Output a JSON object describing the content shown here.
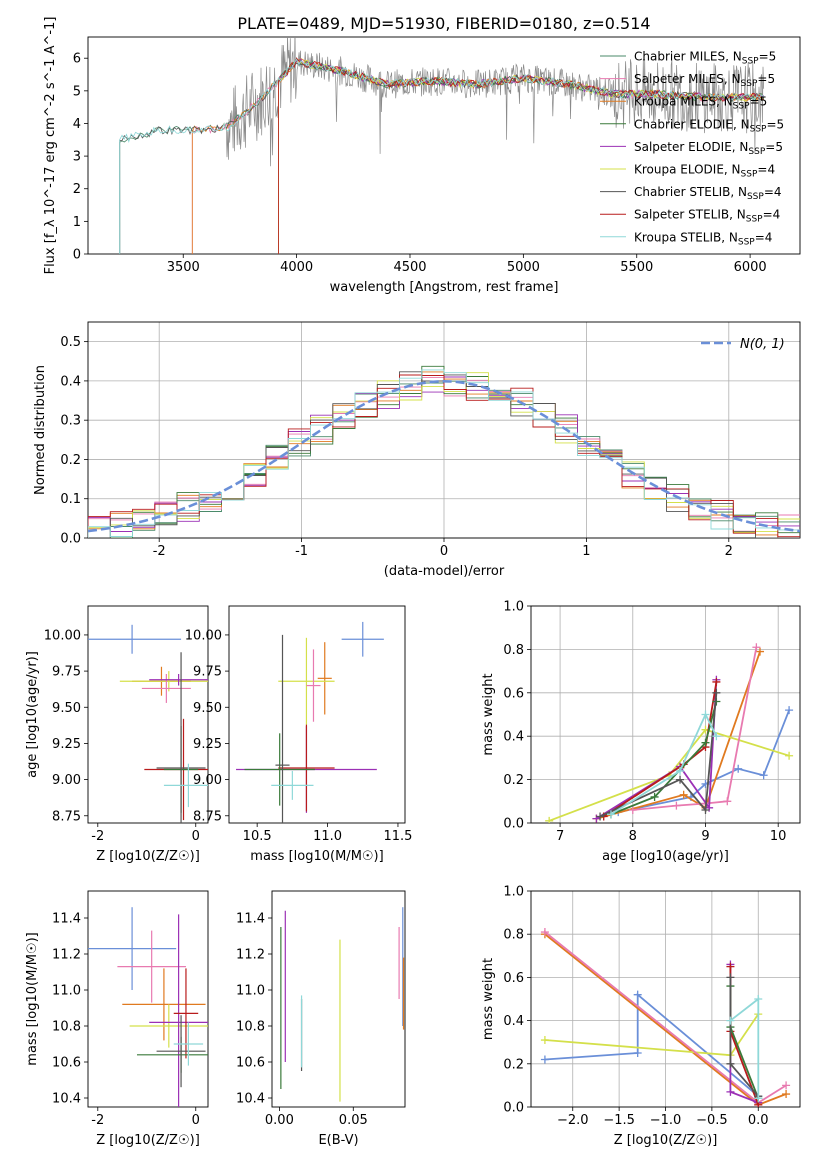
{
  "title": "PLATE=0489, MJD=51930, FIBERID=0180, z=0.514",
  "colors": [
    "#4a8a6a",
    "#e87ab0",
    "#e07a20",
    "#3a7a3a",
    "#9b30b5",
    "#d4e04a",
    "#555555",
    "#b81c1c",
    "#8fd8d8"
  ],
  "chart_data": [
    {
      "id": "spectrum",
      "type": "line",
      "xlabel": "wavelength [Angstrom, rest frame]",
      "ylabel": "Flux [f_λ 10^-17 erg cm^-2 s^-1 A^-1]",
      "xlim": [
        3080,
        6220
      ],
      "ylim": [
        0,
        6.65
      ],
      "xticks": [
        3500,
        4000,
        4500,
        5000,
        5500,
        6000
      ],
      "yticks": [
        0,
        1,
        2,
        3,
        4,
        5,
        6
      ],
      "grid": false,
      "legend_position": "top-right",
      "legend": [
        {
          "main": "Chabrier MILES, N",
          "sub": "SSP",
          "tail": "=5"
        },
        {
          "main": "Salpeter MILES, N",
          "sub": "SSP",
          "tail": "=5"
        },
        {
          "main": "Kroupa MILES, N",
          "sub": "SSP",
          "tail": "=5"
        },
        {
          "main": "Chabrier ELODIE, N",
          "sub": "SSP",
          "tail": "=5"
        },
        {
          "main": "Salpeter ELODIE, N",
          "sub": "SSP",
          "tail": "=5"
        },
        {
          "main": "Kroupa ELODIE, N",
          "sub": "SSP",
          "tail": "=4"
        },
        {
          "main": "Chabrier STELIB, N",
          "sub": "SSP",
          "tail": "=4"
        },
        {
          "main": "Salpeter STELIB, N",
          "sub": "SSP",
          "tail": "=4"
        },
        {
          "main": "Kroupa STELIB, N",
          "sub": "SSP",
          "tail": "=4"
        }
      ],
      "model_starts": [
        3220,
        3540,
        3540,
        3920,
        3920,
        3920,
        3220,
        3920,
        3220
      ],
      "model_ends": [
        6060,
        6060,
        6060,
        6060,
        6060,
        6060,
        6060,
        6060,
        6060
      ],
      "continuum": [
        [
          3220,
          3.5
        ],
        [
          3400,
          3.8
        ],
        [
          3600,
          3.8
        ],
        [
          3700,
          3.9
        ],
        [
          3850,
          4.8
        ],
        [
          4000,
          5.9
        ],
        [
          4200,
          5.6
        ],
        [
          4400,
          5.2
        ],
        [
          4600,
          5.3
        ],
        [
          4800,
          5.2
        ],
        [
          5000,
          5.4
        ],
        [
          5200,
          5.2
        ],
        [
          5400,
          4.9
        ],
        [
          5600,
          4.9
        ],
        [
          5800,
          4.8
        ],
        [
          6060,
          4.8
        ]
      ],
      "data_range": [
        3690,
        6060
      ]
    },
    {
      "id": "residuals",
      "type": "histogram",
      "xlabel": "(data-model)/error",
      "ylabel": "Normed distribution",
      "xlim": [
        -2.5,
        2.5
      ],
      "ylim": [
        0,
        0.55
      ],
      "xticks": [
        -2,
        -1,
        0,
        1,
        2
      ],
      "yticks": [
        0.0,
        0.1,
        0.2,
        0.3,
        0.4,
        0.5
      ],
      "grid": true,
      "legend_position": "top-right",
      "curve_label": "N(0, 1)",
      "curve_color": "#6a8fd8",
      "bins": 32
    },
    {
      "id": "age_vs_Z",
      "type": "errorbar",
      "xlabel": "Z [log10(Z/Z☉)]",
      "ylabel": "age  [log10(age/yr)]",
      "xlim": [
        -2.2,
        0.25
      ],
      "ylim": [
        8.7,
        10.2
      ],
      "xticks": [
        -2,
        0
      ],
      "yticks": [
        8.75,
        9.0,
        9.25,
        9.5,
        9.75,
        10.0
      ],
      "points": [
        {
          "x": -1.3,
          "xerr": 1.0,
          "y": 9.97,
          "yerr": 0.1
        },
        {
          "x": -0.7,
          "xerr": 0.6,
          "y": 9.68,
          "yerr": 0.1
        },
        {
          "x": -0.55,
          "xerr": 1.0,
          "y": 9.68,
          "yerr": 0.07
        },
        {
          "x": -0.6,
          "xerr": 0.5,
          "y": 9.63,
          "yerr": 0.1
        },
        {
          "x": -0.35,
          "xerr": 0.6,
          "y": 9.69,
          "yerr": 0.04
        },
        {
          "x": -0.25,
          "xerr": 0.8,
          "y": 9.07,
          "yerr": 0.35
        },
        {
          "x": -0.3,
          "xerr": 0.35,
          "y": 9.07,
          "yerr": 0.3
        },
        {
          "x": -0.3,
          "xerr": 0.5,
          "y": 9.08,
          "yerr": 0.8
        },
        {
          "x": -0.15,
          "xerr": 0.5,
          "y": 8.96,
          "yerr": 0.15
        }
      ],
      "point_colors": [
        "#6a8fd8",
        "#e07a20",
        "#d4e04a",
        "#e87ab0",
        "#9b30b5",
        "#b81c1c",
        "#3a7a3a",
        "#555555",
        "#8fd8d8"
      ]
    },
    {
      "id": "age_vs_mass",
      "type": "errorbar",
      "xlabel": "mass [log10(M/M☉)]",
      "xlim": [
        10.3,
        11.55
      ],
      "ylim": [
        8.7,
        10.2
      ],
      "xticks": [
        10.5,
        11.0,
        11.5
      ],
      "yticks": [
        8.75,
        9.0,
        9.25,
        9.5,
        9.75,
        10.0
      ],
      "points": [
        {
          "x": 11.25,
          "xerr": 0.15,
          "y": 9.97,
          "yerr": 0.12
        },
        {
          "x": 10.98,
          "xerr": 0.05,
          "y": 9.7,
          "yerr": 0.25
        },
        {
          "x": 10.85,
          "xerr": 0.2,
          "y": 9.68,
          "yerr": 0.3
        },
        {
          "x": 10.9,
          "xerr": 0.05,
          "y": 9.65,
          "yerr": 0.25
        },
        {
          "x": 10.85,
          "xerr": 0.5,
          "y": 9.07,
          "yerr": 0.3
        },
        {
          "x": 10.85,
          "xerr": 0.2,
          "y": 9.08,
          "yerr": 0.3
        },
        {
          "x": 10.66,
          "xerr": 0.25,
          "y": 9.07,
          "yerr": 0.25
        },
        {
          "x": 10.68,
          "xerr": 0.05,
          "y": 9.1,
          "yerr": 0.9
        },
        {
          "x": 10.75,
          "xerr": 0.15,
          "y": 8.96,
          "yerr": 0.1
        }
      ],
      "point_colors": [
        "#6a8fd8",
        "#e07a20",
        "#d4e04a",
        "#e87ab0",
        "#9b30b5",
        "#b81c1c",
        "#3a7a3a",
        "#555555",
        "#8fd8d8"
      ]
    },
    {
      "id": "weight_vs_age",
      "type": "line",
      "xlabel": "age  [log10(age/yr)]",
      "ylabel": "mass weight",
      "xlim": [
        6.6,
        10.3
      ],
      "ylim": [
        0,
        1.0
      ],
      "xticks": [
        7,
        8,
        9,
        10
      ],
      "yticks": [
        0.0,
        0.2,
        0.4,
        0.6,
        0.8,
        1.0
      ],
      "grid": true,
      "series": [
        {
          "x": [
            7.8,
            8.8,
            9.0,
            9.45,
            9.8,
            10.15
          ],
          "y": [
            0.05,
            0.12,
            0.18,
            0.25,
            0.22,
            0.52
          ]
        },
        {
          "x": [
            7.5,
            8.7,
            9.0,
            9.75
          ],
          "y": [
            0.02,
            0.13,
            0.07,
            0.79
          ]
        },
        {
          "x": [
            6.85,
            8.5,
            9.0,
            10.15
          ],
          "y": [
            0.01,
            0.22,
            0.43,
            0.31
          ]
        },
        {
          "x": [
            8.0,
            8.6,
            9.0,
            9.3,
            9.7
          ],
          "y": [
            0.06,
            0.08,
            0.09,
            0.1,
            0.81
          ]
        },
        {
          "x": [
            7.5,
            8.65,
            9.05,
            9.15
          ],
          "y": [
            0.02,
            0.26,
            0.07,
            0.66
          ]
        },
        {
          "x": [
            7.6,
            8.7,
            9.0,
            9.15
          ],
          "y": [
            0.03,
            0.27,
            0.35,
            0.65
          ]
        },
        {
          "x": [
            7.7,
            8.3,
            9.0,
            9.15
          ],
          "y": [
            0.04,
            0.12,
            0.37,
            0.56
          ]
        },
        {
          "x": [
            7.55,
            8.65,
            9.0,
            9.15
          ],
          "y": [
            0.03,
            0.2,
            0.06,
            0.6
          ]
        },
        {
          "x": [
            7.7,
            8.65,
            9.0,
            9.15
          ],
          "y": [
            0.04,
            0.24,
            0.5,
            0.4
          ]
        }
      ],
      "series_colors": [
        "#6a8fd8",
        "#e07a20",
        "#d4e04a",
        "#e87ab0",
        "#9b30b5",
        "#b81c1c",
        "#3a7a3a",
        "#555555",
        "#8fd8d8"
      ]
    },
    {
      "id": "mass_vs_Z",
      "type": "errorbar",
      "xlabel": "Z [log10(Z/Z☉)]",
      "ylabel": "mass [log10(M/M☉)]",
      "xlim": [
        -2.2,
        0.25
      ],
      "ylim": [
        10.35,
        11.55
      ],
      "xticks": [
        -2,
        0
      ],
      "yticks": [
        10.4,
        10.6,
        10.8,
        11.0,
        11.2,
        11.4
      ],
      "points": [
        {
          "x": -1.3,
          "xerr": 0.9,
          "y": 11.23,
          "yerr": 0.23
        },
        {
          "x": -0.9,
          "xerr": 0.7,
          "y": 11.13,
          "yerr": 0.2
        },
        {
          "x": -0.65,
          "xerr": 0.85,
          "y": 10.92,
          "yerr": 0.2
        },
        {
          "x": -0.55,
          "xerr": 0.8,
          "y": 10.8,
          "yerr": 0.12
        },
        {
          "x": -0.35,
          "xerr": 0.6,
          "y": 10.82,
          "yerr": 0.6
        },
        {
          "x": -0.2,
          "xerr": 0.25,
          "y": 10.87,
          "yerr": 0.25
        },
        {
          "x": -0.3,
          "xerr": 0.9,
          "y": 10.64,
          "yerr": 0.1
        },
        {
          "x": -0.3,
          "xerr": 0.5,
          "y": 10.66,
          "yerr": 0.2
        },
        {
          "x": -0.15,
          "xerr": 0.3,
          "y": 10.7,
          "yerr": 0.12
        }
      ],
      "point_colors": [
        "#6a8fd8",
        "#e87ab0",
        "#e07a20",
        "#d4e04a",
        "#9b30b5",
        "#b81c1c",
        "#3a7a3a",
        "#555555",
        "#8fd8d8"
      ]
    },
    {
      "id": "mass_vs_EBV",
      "type": "errorbar",
      "xlabel": "E(B-V)",
      "xlim": [
        -0.005,
        0.085
      ],
      "ylim": [
        10.35,
        11.55
      ],
      "xticks": [
        0.0,
        0.05
      ],
      "yticks": [
        10.4,
        10.6,
        10.8,
        11.0,
        11.2,
        11.4
      ],
      "points": [
        {
          "x": 0.001,
          "xerr": 0,
          "y": 10.9,
          "yerr": 0.45
        },
        {
          "x": 0.004,
          "xerr": 0,
          "y": 11.02,
          "yerr": 0.42
        },
        {
          "x": 0.015,
          "xerr": 0,
          "y": 10.75,
          "yerr": 0.2
        },
        {
          "x": 0.015,
          "xerr": 0,
          "y": 10.77,
          "yerr": 0.2
        },
        {
          "x": 0.041,
          "xerr": 0,
          "y": 10.83,
          "yerr": 0.45
        },
        {
          "x": 0.081,
          "xerr": 0,
          "y": 11.15,
          "yerr": 0.2
        },
        {
          "x": 0.0835,
          "xerr": 0,
          "y": 11.13,
          "yerr": 0.33
        },
        {
          "x": 0.084,
          "xerr": 0,
          "y": 10.98,
          "yerr": 0.2
        }
      ],
      "point_colors": [
        "#3a7a3a",
        "#9b30b5",
        "#555555",
        "#8fd8d8",
        "#d4e04a",
        "#e87ab0",
        "#6a8fd8",
        "#e07a20"
      ]
    },
    {
      "id": "weight_vs_Z",
      "type": "line",
      "xlabel": "Z [log10(Z/Z☉)]",
      "ylabel": "mass weight",
      "xlim": [
        -2.45,
        0.45
      ],
      "ylim": [
        0,
        1.0
      ],
      "xticks": [
        -2.0,
        -1.5,
        -1.0,
        -0.5,
        0.0
      ],
      "yticks": [
        0.0,
        0.2,
        0.4,
        0.6,
        0.8,
        1.0
      ],
      "grid": true,
      "series": [
        {
          "x": [
            -2.3,
            -1.3,
            -1.3,
            0.0
          ],
          "y": [
            0.22,
            0.25,
            0.52,
            0.05
          ]
        },
        {
          "x": [
            -2.3,
            0.0,
            0.3
          ],
          "y": [
            0.8,
            0.01,
            0.06
          ]
        },
        {
          "x": [
            -2.3,
            -0.3,
            0.0
          ],
          "y": [
            0.31,
            0.24,
            0.43
          ]
        },
        {
          "x": [
            -2.3,
            0.0,
            0.3
          ],
          "y": [
            0.81,
            0.02,
            0.1
          ]
        },
        {
          "x": [
            -0.3,
            -0.3,
            0.0
          ],
          "y": [
            0.66,
            0.07,
            0.02
          ]
        },
        {
          "x": [
            -0.3,
            -0.3,
            0.0
          ],
          "y": [
            0.65,
            0.35,
            0.01
          ]
        },
        {
          "x": [
            -0.3,
            -0.3,
            0.0
          ],
          "y": [
            0.56,
            0.37,
            0.04
          ]
        },
        {
          "x": [
            -0.3,
            -0.3,
            0.0
          ],
          "y": [
            0.6,
            0.2,
            0.05
          ]
        },
        {
          "x": [
            -0.3,
            0.0,
            0.0
          ],
          "y": [
            0.4,
            0.5,
            0.04
          ]
        }
      ],
      "series_colors": [
        "#6a8fd8",
        "#e07a20",
        "#d4e04a",
        "#e87ab0",
        "#9b30b5",
        "#b81c1c",
        "#3a7a3a",
        "#555555",
        "#8fd8d8"
      ]
    }
  ]
}
